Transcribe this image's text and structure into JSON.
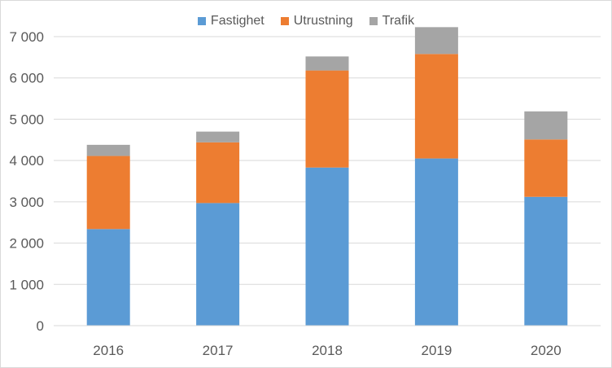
{
  "chart_data": {
    "type": "bar",
    "stacked": true,
    "title": "",
    "xlabel": "",
    "ylabel": "",
    "categories": [
      "2016",
      "2017",
      "2018",
      "2019",
      "2020"
    ],
    "series": [
      {
        "name": "Fastighet",
        "color": "#5b9bd5",
        "values": [
          2340,
          2970,
          3830,
          4050,
          3120
        ]
      },
      {
        "name": "Utrustning",
        "color": "#ed7d31",
        "values": [
          1770,
          1470,
          2350,
          2530,
          1390
        ]
      },
      {
        "name": "Trafik",
        "color": "#a5a5a5",
        "values": [
          270,
          260,
          340,
          650,
          680
        ]
      }
    ],
    "ylim": [
      0,
      7000
    ],
    "yticks": [
      0,
      1000,
      2000,
      3000,
      4000,
      5000,
      6000,
      7000
    ],
    "ytick_labels": [
      "0",
      "1 000",
      "2 000",
      "3 000",
      "4 000",
      "5 000",
      "6 000",
      "7 000"
    ],
    "grid": true,
    "legend_position": "top"
  }
}
